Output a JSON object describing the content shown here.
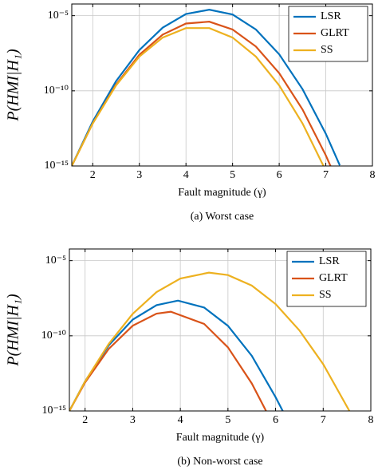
{
  "chart_data": [
    {
      "type": "line",
      "caption": "(a) Worst case",
      "x_label": "Fault magnitude (γ)",
      "y_label": "P(HMI|H₁)",
      "log_scale": true,
      "grid": true,
      "legend": "top-right",
      "xlim": [
        1.55,
        8
      ],
      "xticks": [
        2,
        3,
        4,
        5,
        6,
        7,
        8
      ],
      "ylim": [
        1e-15,
        6e-05
      ],
      "yticks": [
        {
          "value": 1e-15,
          "label": "10⁻¹⁵"
        },
        {
          "value": 1e-10,
          "label": "10⁻¹⁰"
        },
        {
          "value": 1e-05,
          "label": "10⁻⁵"
        }
      ],
      "series": [
        {
          "name": "LSR",
          "color": "#0072bd",
          "x": [
            1.55,
            2,
            2.5,
            3,
            3.5,
            4,
            4.5,
            5,
            5.5,
            6,
            6.5,
            7,
            7.3
          ],
          "values": [
            1e-15,
            9.1e-13,
            4.4e-10,
            5.2e-08,
            1.6e-06,
            1.3e-05,
            2.5e-05,
            1.2e-05,
            1.2e-06,
            2.7e-08,
            1.3e-10,
            1.4e-13,
            1.1e-15
          ]
        },
        {
          "name": "GLRT",
          "color": "#d95319",
          "x": [
            1.55,
            2,
            2.5,
            3,
            3.5,
            4,
            4.5,
            5,
            5.5,
            6,
            6.5,
            7,
            7.1
          ],
          "values": [
            1e-15,
            6.9e-13,
            2.6e-10,
            2.5e-08,
            5.5e-07,
            3e-06,
            4e-06,
            1.2e-06,
            8.9e-08,
            1.5e-09,
            5.8e-12,
            5.1e-15,
            1e-15
          ]
        },
        {
          "name": "SS",
          "color": "#edb120",
          "x": [
            1.55,
            2,
            2.5,
            3,
            3.5,
            4,
            4.5,
            5,
            5.5,
            6,
            6.5,
            6.95
          ],
          "values": [
            1e-15,
            6.8e-13,
            2.3e-10,
            1.9e-08,
            3.5e-07,
            1.5e-06,
            1.5e-06,
            3.5e-07,
            1.9e-08,
            2.3e-10,
            6.8e-13,
            1e-15
          ]
        }
      ]
    },
    {
      "type": "line",
      "caption": "(b) Non-worst case",
      "x_label": "Fault magnitude (γ)",
      "y_label": "P(HMI|H₁)",
      "log_scale": true,
      "grid": true,
      "legend": "top-right",
      "xlim": [
        1.67,
        8
      ],
      "xticks": [
        2,
        3,
        4,
        5,
        6,
        7,
        8
      ],
      "ylim": [
        1e-15,
        6e-05
      ],
      "yticks": [
        {
          "value": 1e-15,
          "label": "10⁻¹⁵"
        },
        {
          "value": 1e-10,
          "label": "10⁻¹⁰"
        },
        {
          "value": 1e-05,
          "label": "10⁻⁵"
        }
      ],
      "series": [
        {
          "name": "LSR",
          "color": "#0072bd",
          "x": [
            1.67,
            2,
            2.5,
            3,
            3.5,
            3.95,
            4.5,
            5,
            5.5,
            6,
            6.15
          ],
          "values": [
            1e-15,
            9.5e-14,
            2.4e-11,
            1.2e-09,
            1.1e-08,
            2.2e-08,
            7.6e-09,
            4.6e-10,
            4.7e-12,
            8.3e-15,
            1e-15
          ]
        },
        {
          "name": "GLRT",
          "color": "#d95319",
          "x": [
            1.67,
            2,
            2.5,
            3,
            3.5,
            3.8,
            4.5,
            5,
            5.5,
            5.8
          ],
          "values": [
            1e-15,
            7.9e-14,
            1.4e-11,
            4.7e-10,
            3e-09,
            4e-09,
            6.2e-10,
            1.7e-11,
            6.8e-14,
            1e-15
          ]
        },
        {
          "name": "SS",
          "color": "#edb120",
          "x": [
            1.67,
            2,
            2.5,
            3,
            3.5,
            4,
            4.6,
            5,
            5.5,
            6,
            6.5,
            7,
            7.55
          ],
          "values": [
            1e-15,
            9.3e-14,
            3e-11,
            2.9e-09,
            8.1e-08,
            6.5e-07,
            1.6e-06,
            1.1e-06,
            2.2e-07,
            1.3e-08,
            2.3e-10,
            1.3e-12,
            1e-15
          ]
        }
      ]
    }
  ]
}
